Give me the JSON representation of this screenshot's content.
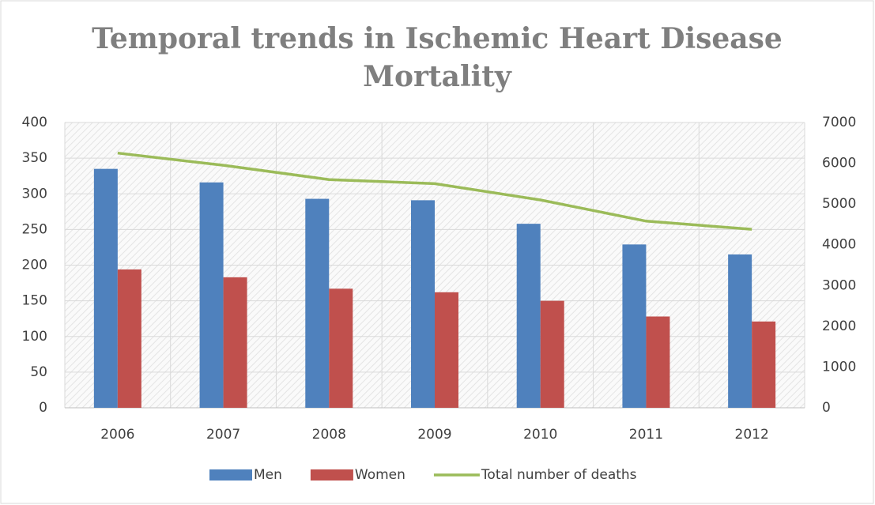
{
  "chart_data": {
    "type": "bar",
    "title": [
      "Temporal trends in Ischemic Heart Disease",
      "Mortality"
    ],
    "categories": [
      "2006",
      "2007",
      "2008",
      "2009",
      "2010",
      "2011",
      "2012"
    ],
    "series": [
      {
        "name": "Men",
        "color": "#4f81bd",
        "values": [
          335,
          316,
          293,
          291,
          258,
          229,
          215
        ]
      },
      {
        "name": "Women",
        "color": "#c0504d",
        "values": [
          194,
          183,
          167,
          162,
          150,
          128,
          121
        ]
      },
      {
        "name": "Total number of deaths",
        "color": "#9bbb59",
        "type": "line",
        "axis": "y2",
        "values": [
          6250,
          5950,
          5600,
          5500,
          5100,
          4580,
          4380
        ]
      }
    ],
    "ylim": [
      0,
      400
    ],
    "yticks": [
      0,
      50,
      100,
      150,
      200,
      250,
      300,
      350,
      400
    ],
    "y2lim": [
      0,
      7000
    ],
    "y2ticks": [
      0,
      1000,
      2000,
      3000,
      4000,
      5000,
      6000,
      7000
    ],
    "grid": true,
    "legend": "bottom"
  }
}
